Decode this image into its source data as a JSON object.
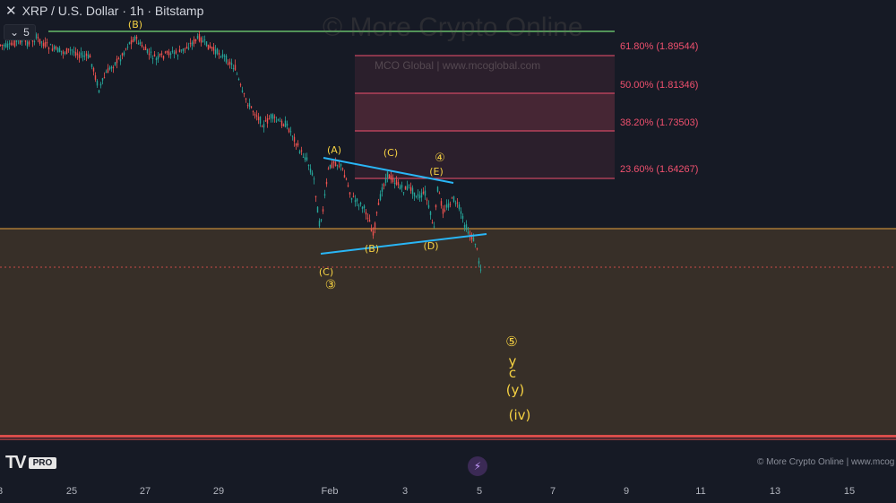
{
  "header": {
    "close_icon": "x-icon",
    "title": "XRP / U.S. Dollar · 1h · Bitstamp",
    "interval": "5"
  },
  "watermark": {
    "text": "© More Crypto Online",
    "secondary": "MCO Global  |  www.mcoglobal.com"
  },
  "footer": {
    "logo": "TV",
    "logo_badge": "PRO",
    "credit": "© More Crypto Online  |  www.mcog",
    "icon": "lightning-icon"
  },
  "chart_data": {
    "type": "candlestick",
    "title": "XRP / U.S. Dollar · 1h · Bitstamp",
    "x_tick_labels": [
      "3",
      "25",
      "27",
      "29",
      "Feb",
      "3",
      "5",
      "7",
      "9",
      "11",
      "13",
      "15"
    ],
    "fib_levels": [
      {
        "label": "61.80% (1.89544)",
        "ratio": 0.618,
        "price": 1.89544
      },
      {
        "label": "50.00% (1.81346)",
        "ratio": 0.5,
        "price": 1.81346
      },
      {
        "label": "38.20% (1.73503)",
        "ratio": 0.382,
        "price": 1.73503
      },
      {
        "label": "23.60% (1.64267)",
        "ratio": 0.236,
        "price": 1.64267
      }
    ],
    "wave_labels": [
      "(B)",
      "(A)",
      "(C)",
      "④",
      "(E)",
      "(B)",
      "(D)",
      "(C)",
      "③",
      "⑤",
      "y",
      "c",
      "(y)",
      "(iv)"
    ],
    "colors": {
      "background": "#161a25",
      "up": "#26a69a",
      "down": "#ef5350",
      "fib": "#f0506e",
      "support_zone": "#e8a33b",
      "resistance_line": "#66bb6a",
      "triangle": "#29b6f6",
      "wave_label": "#f5d142"
    }
  }
}
